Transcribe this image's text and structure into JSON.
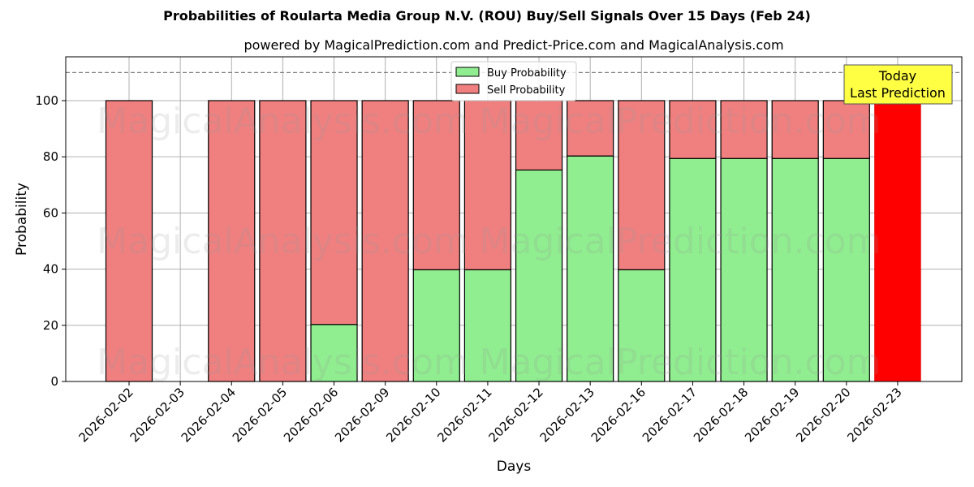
{
  "header": {
    "title": "Probabilities of Roularta Media Group N.V. (ROU) Buy/Sell Signals Over 15 Days (Feb 24)",
    "subtitle": "powered by MagicalPrediction.com and Predict-Price.com and MagicalAnalysis.com"
  },
  "legend": {
    "buy_label": "Buy Probability",
    "sell_label": "Sell Probability"
  },
  "annotation": {
    "line1": "Today",
    "line2": "Last Prediction"
  },
  "watermarks": [
    "MagicalAnalysis.com",
    "MagicalPrediction.com"
  ],
  "colors": {
    "buy": "#90ee90",
    "sell": "#f08080",
    "today": "#ff0000",
    "annotation_bg": "#ffff44",
    "grid": "#b0b0b0",
    "dashed_line": "#808080"
  },
  "chart_data": {
    "type": "bar",
    "stacked": true,
    "title": "Probabilities of Roularta Media Group N.V. (ROU) Buy/Sell Signals Over 15 Days (Feb 24)",
    "subtitle": "powered by MagicalPrediction.com and Predict-Price.com and MagicalAnalysis.com",
    "xlabel": "Days",
    "ylabel": "Probability",
    "ylim": [
      0,
      115.6
    ],
    "yticks": [
      0,
      20,
      40,
      60,
      80,
      100
    ],
    "grid": true,
    "legend_position": "upper center",
    "reference_line": {
      "y": 110,
      "style": "dashed"
    },
    "categories": [
      "2026-02-02",
      "2026-02-03",
      "2026-02-04",
      "2026-02-05",
      "2026-02-06",
      "2026-02-09",
      "2026-02-10",
      "2026-02-11",
      "2026-02-12",
      "2026-02-13",
      "2026-02-16",
      "2026-02-17",
      "2026-02-18",
      "2026-02-19",
      "2026-02-20",
      "2026-02-23"
    ],
    "series": [
      {
        "name": "Buy Probability",
        "values": [
          0,
          null,
          0,
          0,
          20.3,
          0,
          39.8,
          39.8,
          75.3,
          80.3,
          39.8,
          79.4,
          79.4,
          79.4,
          79.4,
          0
        ]
      },
      {
        "name": "Sell Probability",
        "values": [
          100,
          null,
          100,
          100,
          79.7,
          100,
          60.2,
          60.2,
          24.7,
          19.7,
          60.2,
          20.6,
          20.6,
          20.6,
          20.6,
          100
        ]
      }
    ],
    "highlight": {
      "category": "2026-02-23",
      "label": "Today Last Prediction",
      "color": "#ff0000"
    }
  }
}
